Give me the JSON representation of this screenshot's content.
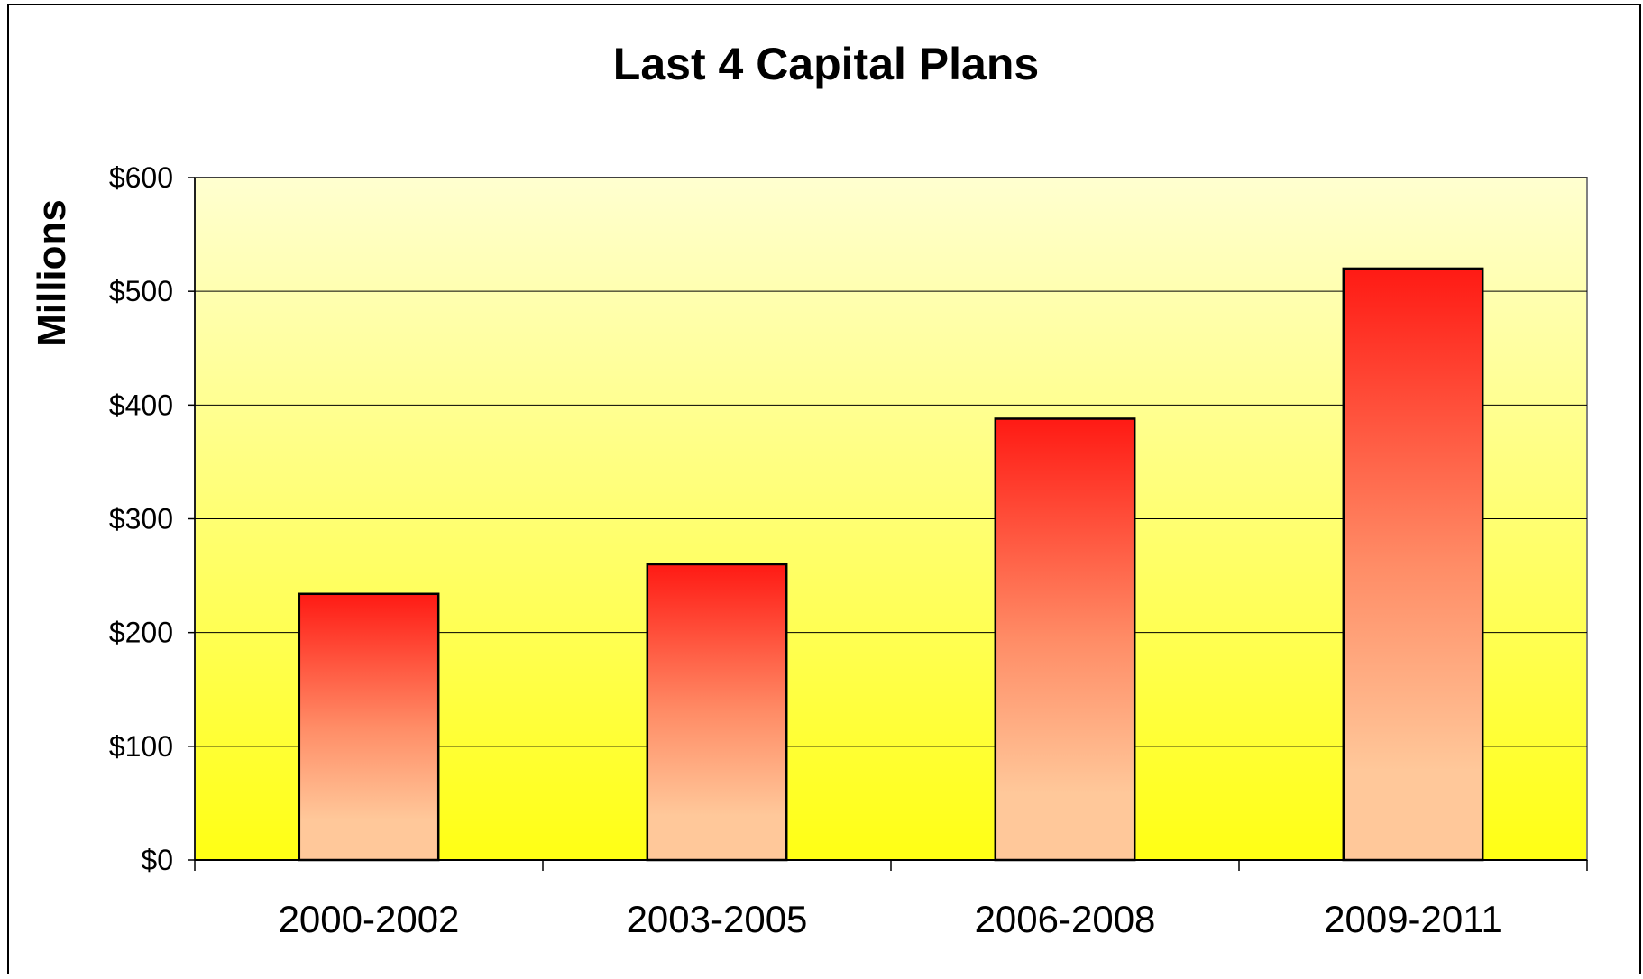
{
  "chart_data": {
    "type": "bar",
    "title": "Last 4 Capital Plans",
    "xlabel": "",
    "ylabel": "Millions",
    "categories": [
      "2000-2002",
      "2003-2005",
      "2006-2008",
      "2009-2011"
    ],
    "values": [
      234,
      260,
      388,
      520
    ],
    "ylim": [
      0,
      600
    ],
    "yticks": [
      0,
      100,
      200,
      300,
      400,
      500,
      600
    ],
    "ytick_labels": [
      "$0",
      "$100",
      "$200",
      "$300",
      "$400",
      "$500",
      "$600"
    ],
    "grid": true,
    "legend": "none",
    "colors": {
      "bar_top": "#ff1a14",
      "bar_mid": "#ff8c66",
      "bar_bottom": "#ffc89a",
      "plot_bg_top": "#ffffd0",
      "plot_bg_bottom": "#ffff14",
      "gridline": "#000000",
      "outline": "#000000"
    }
  }
}
